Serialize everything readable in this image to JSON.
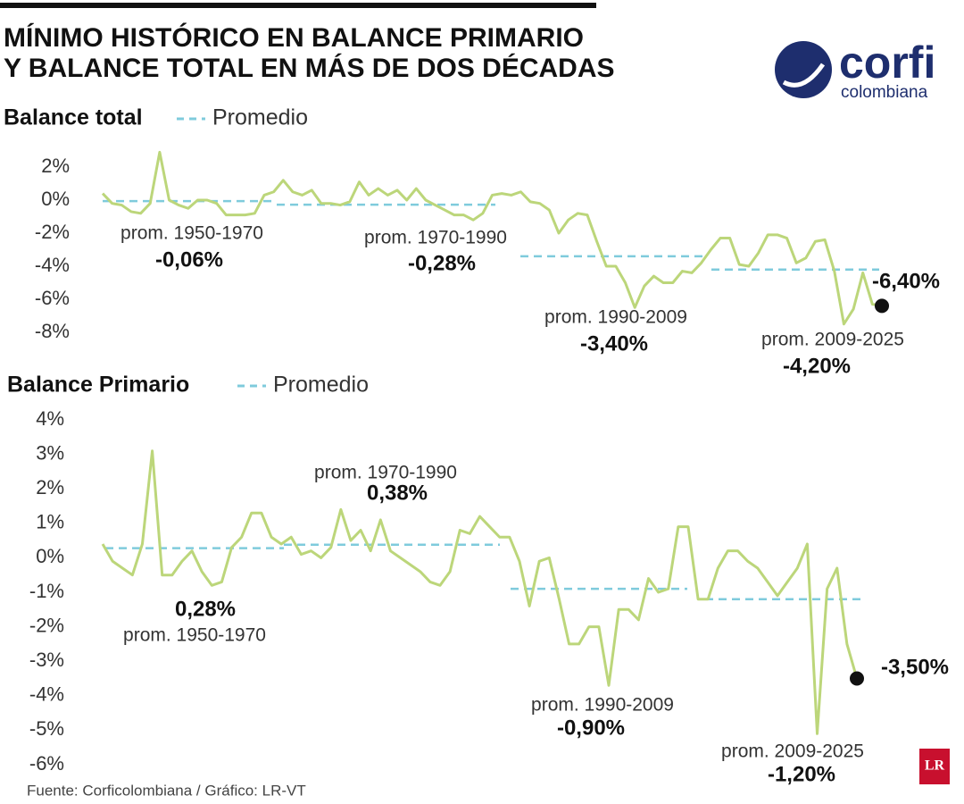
{
  "title": [
    "MÍNIMO HISTÓRICO EN BALANCE PRIMARIO",
    "Y BALANCE TOTAL EN MÁS DE DOS DÉCADAS"
  ],
  "logo": {
    "brand": "corfi",
    "sub": "colombiana"
  },
  "source": "Fuente: Corficolombiana / Gráfico: LR-VT",
  "badge": "LR",
  "chart_data": [
    {
      "type": "line",
      "title": "Balance total",
      "ylim": [
        -8,
        3
      ],
      "yticks": [
        {
          "value": 2,
          "label": "2%"
        },
        {
          "value": 0,
          "label": "0%"
        },
        {
          "value": -2,
          "label": "-2%"
        },
        {
          "value": -4,
          "label": "-4%"
        },
        {
          "value": -6,
          "label": "-6%"
        },
        {
          "value": -8,
          "label": "-8%"
        }
      ],
      "series": [
        {
          "name": "Balance total",
          "color": "#bcd67a",
          "values": [
            0.4,
            -0.2,
            -0.3,
            -0.7,
            -0.8,
            -0.2,
            2.9,
            0.0,
            -0.3,
            -0.5,
            0.0,
            0.0,
            -0.2,
            -0.9,
            -0.9,
            -0.9,
            -0.8,
            0.3,
            0.5,
            1.2,
            0.5,
            0.3,
            0.6,
            -0.2,
            -0.2,
            -0.3,
            -0.1,
            1.1,
            0.3,
            0.7,
            0.3,
            0.6,
            0.0,
            0.7,
            0.0,
            -0.3,
            -0.6,
            -0.9,
            -0.9,
            -1.2,
            -0.8,
            0.3,
            0.4,
            0.3,
            0.5,
            -0.1,
            -0.2,
            -0.6,
            -2.0,
            -1.2,
            -0.8,
            -0.9,
            -2.5,
            -4.0,
            -4.0,
            -5.0,
            -6.5,
            -5.2,
            -4.6,
            -5.0,
            -5.0,
            -4.3,
            -4.4,
            -3.8,
            -3.0,
            -2.3,
            -2.3,
            -3.9,
            -4.0,
            -3.2,
            -2.1,
            -2.1,
            -2.3,
            -3.8,
            -3.5,
            -2.5,
            -2.4,
            -4.3,
            -7.5,
            -6.6,
            -4.4,
            -6.3,
            -6.4
          ],
          "value_labels": [
            null,
            null,
            null,
            null,
            null,
            null,
            null,
            null,
            null,
            null,
            null,
            null,
            null,
            null,
            null,
            null,
            null,
            null,
            null,
            null,
            null,
            null,
            null,
            null,
            null,
            null,
            null,
            null,
            null,
            null,
            null,
            null,
            null,
            null,
            null,
            null,
            null,
            null,
            null,
            null,
            null,
            null,
            null,
            null,
            null,
            null,
            null,
            null,
            null,
            null,
            null,
            null,
            null,
            null,
            null,
            null,
            null,
            null,
            null,
            null,
            null,
            null,
            null,
            null,
            null,
            null,
            null,
            null,
            null,
            null,
            null,
            null,
            null,
            null,
            null,
            null,
            null,
            null,
            null,
            null,
            null,
            null,
            "-6,40%"
          ]
        }
      ],
      "averages": {
        "name": "Promedio",
        "color": "#7fcbdc",
        "segments": [
          {
            "label": "prom. 1950-1970",
            "value": -0.06,
            "value_label": "-0,06%"
          },
          {
            "label": "prom. 1970-1990",
            "value": -0.28,
            "value_label": "-0,28%"
          },
          {
            "label": "prom. 1990-2009",
            "value": -3.4,
            "value_label": "-3,40%"
          },
          {
            "label": "prom. 2009-2025",
            "value": -4.2,
            "value_label": "-4,20%"
          }
        ]
      }
    },
    {
      "type": "line",
      "title": "Balance Primario",
      "ylim": [
        -6,
        4
      ],
      "yticks": [
        {
          "value": 4,
          "label": "4%"
        },
        {
          "value": 3,
          "label": "3%"
        },
        {
          "value": 2,
          "label": "2%"
        },
        {
          "value": 1,
          "label": "1%"
        },
        {
          "value": 0,
          "label": "0%"
        },
        {
          "value": -1,
          "label": "-1%"
        },
        {
          "value": -2,
          "label": "-2%"
        },
        {
          "value": -3,
          "label": "-3%"
        },
        {
          "value": -4,
          "label": "-4%"
        },
        {
          "value": -5,
          "label": "-5%"
        },
        {
          "value": -6,
          "label": "-6%"
        }
      ],
      "series": [
        {
          "name": "Balance Primario",
          "color": "#bcd67a",
          "values": [
            0.4,
            -0.1,
            -0.3,
            -0.5,
            0.4,
            3.1,
            -0.5,
            -0.5,
            -0.1,
            0.2,
            -0.4,
            -0.8,
            -0.7,
            0.3,
            0.6,
            1.3,
            1.3,
            0.6,
            0.4,
            0.6,
            0.1,
            0.2,
            0.0,
            0.3,
            1.4,
            0.5,
            0.8,
            0.2,
            1.1,
            0.2,
            0.0,
            -0.2,
            -0.4,
            -0.7,
            -0.8,
            -0.4,
            0.8,
            0.7,
            1.2,
            0.9,
            0.6,
            0.6,
            -0.1,
            -1.4,
            -0.1,
            0.0,
            -1.2,
            -2.5,
            -2.5,
            -2.0,
            -2.0,
            -3.7,
            -1.5,
            -1.5,
            -1.8,
            -0.6,
            -1.0,
            -0.9,
            0.9,
            0.9,
            -1.2,
            -1.2,
            -0.3,
            0.2,
            0.2,
            -0.1,
            -0.3,
            -0.7,
            -1.1,
            -0.7,
            -0.3,
            0.4,
            -5.1,
            -0.9,
            -0.3,
            -2.5,
            -3.5
          ],
          "value_labels": [
            null,
            null,
            null,
            null,
            null,
            null,
            null,
            null,
            null,
            null,
            null,
            null,
            null,
            null,
            null,
            null,
            null,
            null,
            null,
            null,
            null,
            null,
            null,
            null,
            null,
            null,
            null,
            null,
            null,
            null,
            null,
            null,
            null,
            null,
            null,
            null,
            null,
            null,
            null,
            null,
            null,
            null,
            null,
            null,
            null,
            null,
            null,
            null,
            null,
            null,
            null,
            null,
            null,
            null,
            null,
            null,
            null,
            null,
            null,
            null,
            null,
            null,
            null,
            null,
            null,
            null,
            null,
            null,
            null,
            null,
            null,
            null,
            null,
            null,
            null,
            null,
            "-3,50%"
          ]
        }
      ],
      "averages": {
        "name": "Promedio",
        "color": "#7fcbdc",
        "segments": [
          {
            "label": "prom. 1950-1970",
            "value": 0.28,
            "value_label": "0,28%"
          },
          {
            "label": "prom. 1970-1990",
            "value": 0.38,
            "value_label": "0,38%"
          },
          {
            "label": "prom. 1990-2009",
            "value": -0.9,
            "value_label": "-0,90%"
          },
          {
            "label": "prom. 2009-2025",
            "value": -1.2,
            "value_label": "-1,20%"
          }
        ]
      }
    }
  ]
}
